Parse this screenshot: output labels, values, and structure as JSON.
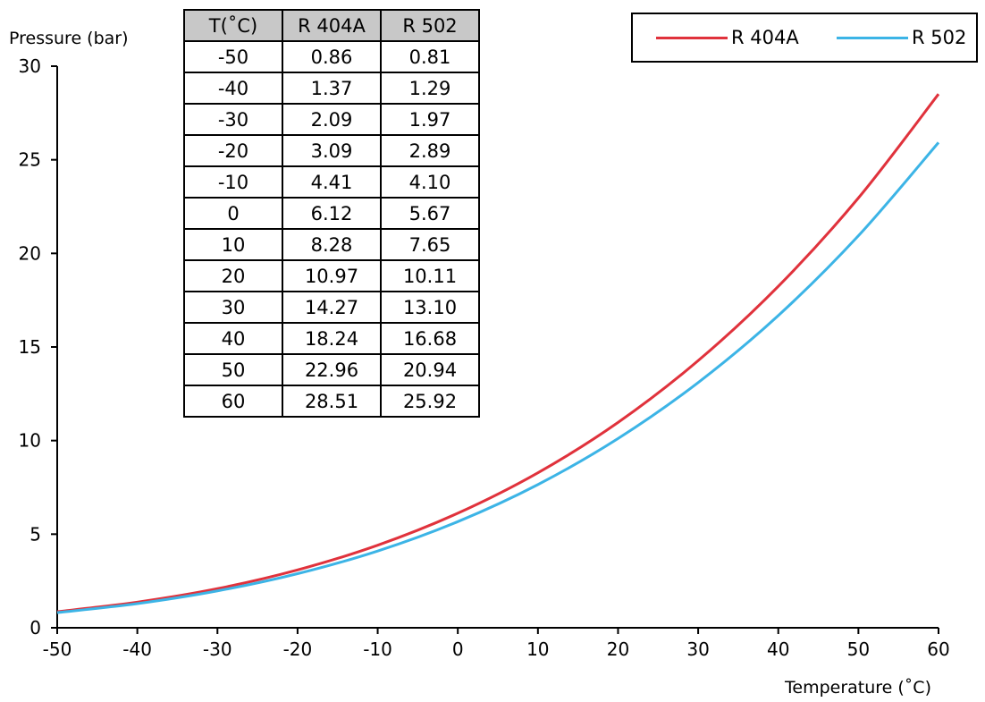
{
  "chart_data": {
    "type": "line",
    "title": "",
    "xlabel": "Temperature (˚C)",
    "ylabel": "Pressure (bar)",
    "xlim": [
      -50,
      60
    ],
    "ylim": [
      0,
      30
    ],
    "x_ticks": [
      -50,
      -40,
      -30,
      -20,
      -10,
      0,
      10,
      20,
      30,
      40,
      50,
      60
    ],
    "y_ticks": [
      0,
      5,
      10,
      15,
      20,
      25,
      30
    ],
    "grid": false,
    "legend_position": "top-right",
    "x": [
      -50,
      -40,
      -30,
      -20,
      -10,
      0,
      10,
      20,
      30,
      40,
      50,
      60
    ],
    "series": [
      {
        "name": "R 404A",
        "color": "#e0323c",
        "values": [
          0.86,
          1.37,
          2.09,
          3.09,
          4.41,
          6.12,
          8.28,
          10.97,
          14.27,
          18.24,
          22.96,
          28.51
        ]
      },
      {
        "name": "R 502",
        "color": "#3cb4e6",
        "values": [
          0.81,
          1.29,
          1.97,
          2.89,
          4.1,
          5.67,
          7.65,
          10.11,
          13.1,
          16.68,
          20.94,
          25.92
        ]
      }
    ],
    "table": {
      "headers": [
        "T(˚C)",
        "R 404A",
        "R 502"
      ],
      "rows": [
        [
          "-50",
          "0.86",
          "0.81"
        ],
        [
          "-40",
          "1.37",
          "1.29"
        ],
        [
          "-30",
          "2.09",
          "1.97"
        ],
        [
          "-20",
          "3.09",
          "2.89"
        ],
        [
          "-10",
          "4.41",
          "4.10"
        ],
        [
          "0",
          "6.12",
          "5.67"
        ],
        [
          "10",
          "8.28",
          "7.65"
        ],
        [
          "20",
          "10.97",
          "10.11"
        ],
        [
          "30",
          "14.27",
          "13.10"
        ],
        [
          "40",
          "18.24",
          "16.68"
        ],
        [
          "50",
          "22.96",
          "20.94"
        ],
        [
          "60",
          "28.51",
          "25.92"
        ]
      ]
    }
  }
}
